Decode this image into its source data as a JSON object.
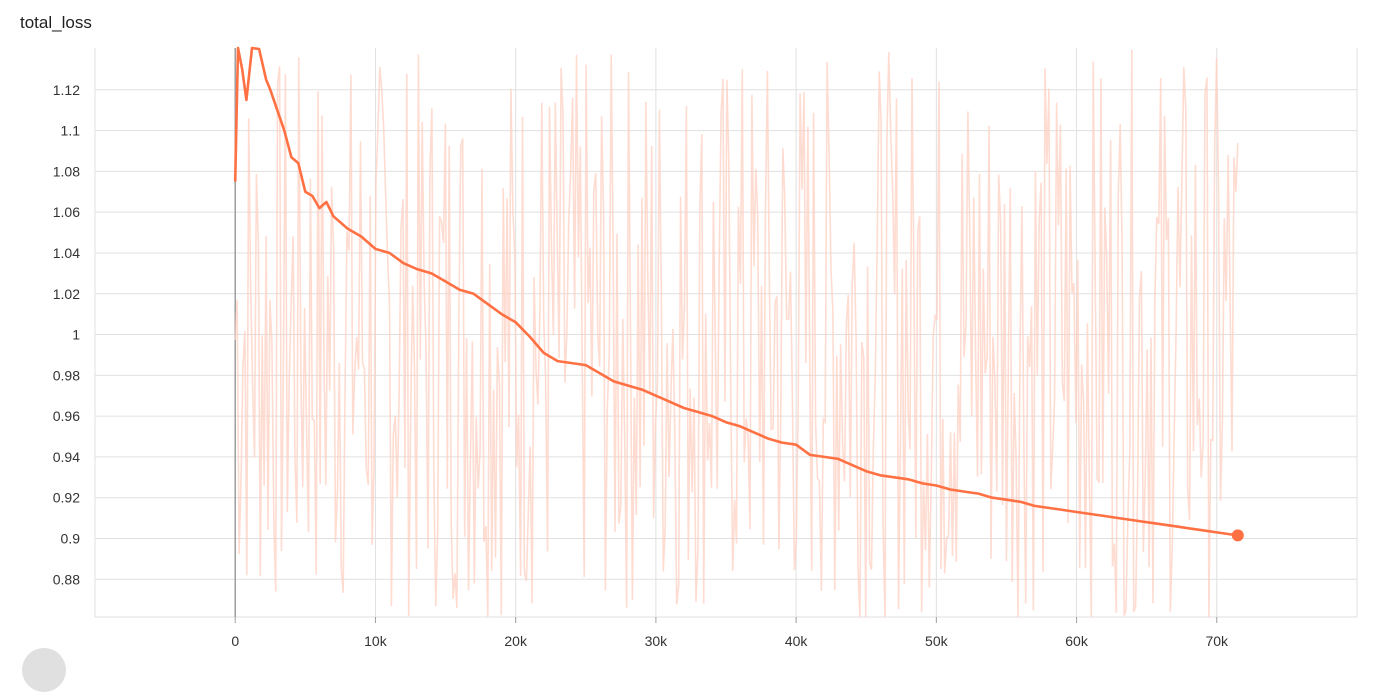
{
  "chart_data": {
    "type": "line",
    "title": "total_loss",
    "xlabel": "",
    "ylabel": "",
    "xlim": [
      -10000,
      80000
    ],
    "ylim": [
      0.8615,
      1.1405
    ],
    "x_ticks": [
      {
        "value": 0,
        "label": "0"
      },
      {
        "value": 10000,
        "label": "10k"
      },
      {
        "value": 20000,
        "label": "20k"
      },
      {
        "value": 30000,
        "label": "30k"
      },
      {
        "value": 40000,
        "label": "40k"
      },
      {
        "value": 50000,
        "label": "50k"
      },
      {
        "value": 60000,
        "label": "60k"
      },
      {
        "value": 70000,
        "label": "70k"
      }
    ],
    "y_ticks": [
      {
        "value": 0.88,
        "label": "0.88"
      },
      {
        "value": 0.9,
        "label": "0.9"
      },
      {
        "value": 0.92,
        "label": "0.92"
      },
      {
        "value": 0.94,
        "label": "0.94"
      },
      {
        "value": 0.96,
        "label": "0.96"
      },
      {
        "value": 0.98,
        "label": "0.98"
      },
      {
        "value": 1.0,
        "label": "1"
      },
      {
        "value": 1.02,
        "label": "1.02"
      },
      {
        "value": 1.04,
        "label": "1.04"
      },
      {
        "value": 1.06,
        "label": "1.06"
      },
      {
        "value": 1.08,
        "label": "1.08"
      },
      {
        "value": 1.1,
        "label": "1.1"
      },
      {
        "value": 1.12,
        "label": "1.12"
      }
    ],
    "grid": true,
    "colors": {
      "smoothed": "#ff7043",
      "raw": "#ffcdbd",
      "grid": "#e0e0e0",
      "zero_axis": "#9e9e9e"
    },
    "series": [
      {
        "role": "smoothed",
        "x": [
          0,
          200,
          500,
          800,
          1200,
          1700,
          2200,
          2500,
          3000,
          3500,
          4000,
          4500,
          5000,
          5500,
          6000,
          6500,
          7000,
          7500,
          8000,
          9000,
          10000,
          11000,
          12000,
          13000,
          14000,
          15000,
          16000,
          17000,
          18000,
          19000,
          20000,
          21000,
          22000,
          23000,
          24000,
          25000,
          26000,
          27000,
          28000,
          29000,
          30000,
          31000,
          32000,
          33000,
          34000,
          35000,
          36000,
          37000,
          38000,
          39000,
          40000,
          41000,
          42000,
          43000,
          44000,
          45000,
          46000,
          47000,
          48000,
          49000,
          50000,
          51000,
          52000,
          53000,
          54000,
          55000,
          56000,
          57000,
          58000,
          59000,
          60000,
          61000,
          62000,
          63000,
          64000,
          65000,
          66000,
          67000,
          68000,
          69000,
          70000,
          71000,
          71500
        ],
        "values": [
          1.075,
          1.15,
          1.13,
          1.115,
          1.15,
          1.14,
          1.125,
          1.12,
          1.11,
          1.1,
          1.087,
          1.084,
          1.07,
          1.068,
          1.062,
          1.065,
          1.058,
          1.055,
          1.052,
          1.048,
          1.042,
          1.04,
          1.035,
          1.032,
          1.03,
          1.026,
          1.022,
          1.02,
          1.015,
          1.01,
          1.006,
          0.999,
          0.991,
          0.987,
          0.986,
          0.985,
          0.981,
          0.977,
          0.975,
          0.973,
          0.97,
          0.967,
          0.964,
          0.962,
          0.96,
          0.957,
          0.955,
          0.952,
          0.949,
          0.947,
          0.946,
          0.941,
          0.94,
          0.939,
          0.936,
          0.933,
          0.931,
          0.93,
          0.929,
          0.927,
          0.926,
          0.924,
          0.923,
          0.922,
          0.92,
          0.919,
          0.918,
          0.916,
          0.915,
          0.914,
          0.913,
          0.912,
          0.911,
          0.91,
          0.909,
          0.908,
          0.907,
          0.906,
          0.905,
          0.904,
          0.903,
          0.902,
          0.9015
        ]
      }
    ],
    "raw_series": {
      "role": "raw",
      "description_of_noise": "high-variance raw values oscillating mostly between about 0.86 and 1.14 across the full step range",
      "x_start": 0,
      "x_end": 71500,
      "low": 0.86,
      "high": 1.14
    }
  }
}
